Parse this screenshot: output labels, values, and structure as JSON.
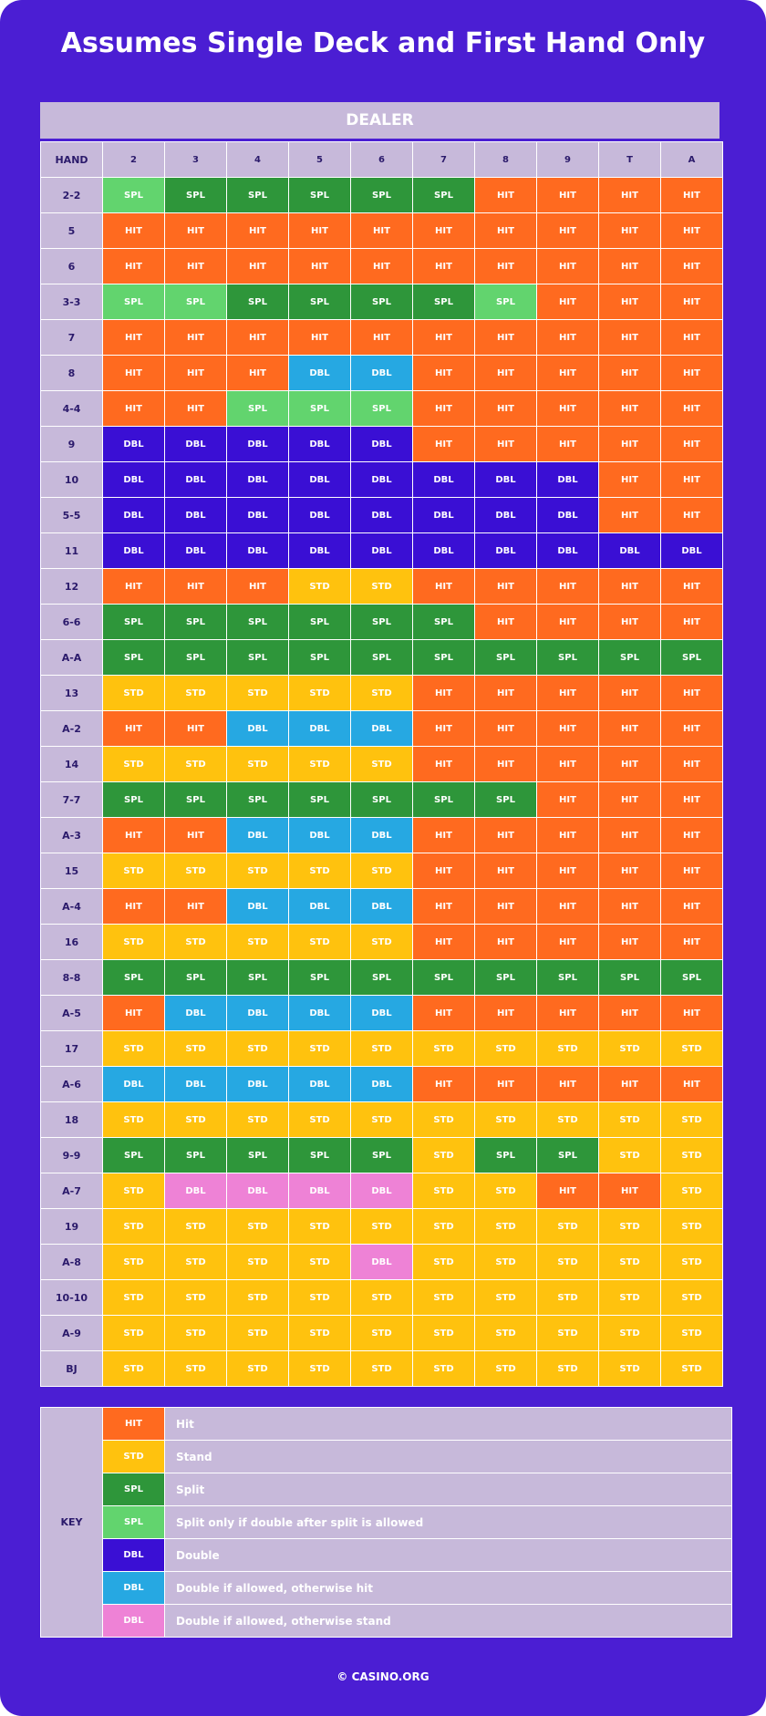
{
  "title": "Assumes Single Deck and First Hand Only",
  "dealer_label": "DEALER",
  "hand_label": "HAND",
  "dealer_cards": [
    "2",
    "3",
    "4",
    "5",
    "6",
    "7",
    "8",
    "9",
    "T",
    "A"
  ],
  "colors": {
    "HIT": "#ff6a1f",
    "STD": "#ffc20e",
    "SPL": "#2e963a",
    "SPL2": "#62d46e",
    "DBL": "#3a0fd4",
    "DBL2": "#26a8e2",
    "DBL3": "#ee82d6"
  },
  "codes": {
    "HIT": "HIT",
    "STD": "STD",
    "SPL": "SPL",
    "SPL2": "SPL",
    "DBL": "DBL",
    "DBL2": "DBL",
    "DBL3": "DBL"
  },
  "rows": [
    {
      "hand": "2-2",
      "cells": [
        "SPL2",
        "SPL",
        "SPL",
        "SPL",
        "SPL",
        "SPL",
        "HIT",
        "HIT",
        "HIT",
        "HIT"
      ]
    },
    {
      "hand": "5",
      "cells": [
        "HIT",
        "HIT",
        "HIT",
        "HIT",
        "HIT",
        "HIT",
        "HIT",
        "HIT",
        "HIT",
        "HIT"
      ]
    },
    {
      "hand": "6",
      "cells": [
        "HIT",
        "HIT",
        "HIT",
        "HIT",
        "HIT",
        "HIT",
        "HIT",
        "HIT",
        "HIT",
        "HIT"
      ]
    },
    {
      "hand": "3-3",
      "cells": [
        "SPL2",
        "SPL2",
        "SPL",
        "SPL",
        "SPL",
        "SPL",
        "SPL2",
        "HIT",
        "HIT",
        "HIT"
      ]
    },
    {
      "hand": "7",
      "cells": [
        "HIT",
        "HIT",
        "HIT",
        "HIT",
        "HIT",
        "HIT",
        "HIT",
        "HIT",
        "HIT",
        "HIT"
      ]
    },
    {
      "hand": "8",
      "cells": [
        "HIT",
        "HIT",
        "HIT",
        "DBL2",
        "DBL2",
        "HIT",
        "HIT",
        "HIT",
        "HIT",
        "HIT"
      ]
    },
    {
      "hand": "4-4",
      "cells": [
        "HIT",
        "HIT",
        "SPL2",
        "SPL2",
        "SPL2",
        "HIT",
        "HIT",
        "HIT",
        "HIT",
        "HIT"
      ]
    },
    {
      "hand": "9",
      "cells": [
        "DBL",
        "DBL",
        "DBL",
        "DBL",
        "DBL",
        "HIT",
        "HIT",
        "HIT",
        "HIT",
        "HIT"
      ]
    },
    {
      "hand": "10",
      "cells": [
        "DBL",
        "DBL",
        "DBL",
        "DBL",
        "DBL",
        "DBL",
        "DBL",
        "DBL",
        "HIT",
        "HIT"
      ]
    },
    {
      "hand": "5-5",
      "cells": [
        "DBL",
        "DBL",
        "DBL",
        "DBL",
        "DBL",
        "DBL",
        "DBL",
        "DBL",
        "HIT",
        "HIT"
      ]
    },
    {
      "hand": "11",
      "cells": [
        "DBL",
        "DBL",
        "DBL",
        "DBL",
        "DBL",
        "DBL",
        "DBL",
        "DBL",
        "DBL",
        "DBL"
      ]
    },
    {
      "hand": "12",
      "cells": [
        "HIT",
        "HIT",
        "HIT",
        "STD",
        "STD",
        "HIT",
        "HIT",
        "HIT",
        "HIT",
        "HIT"
      ]
    },
    {
      "hand": "6-6",
      "cells": [
        "SPL",
        "SPL",
        "SPL",
        "SPL",
        "SPL",
        "SPL",
        "HIT",
        "HIT",
        "HIT",
        "HIT"
      ]
    },
    {
      "hand": "A-A",
      "cells": [
        "SPL",
        "SPL",
        "SPL",
        "SPL",
        "SPL",
        "SPL",
        "SPL",
        "SPL",
        "SPL",
        "SPL"
      ]
    },
    {
      "hand": "13",
      "cells": [
        "STD",
        "STD",
        "STD",
        "STD",
        "STD",
        "HIT",
        "HIT",
        "HIT",
        "HIT",
        "HIT"
      ]
    },
    {
      "hand": "A-2",
      "cells": [
        "HIT",
        "HIT",
        "DBL2",
        "DBL2",
        "DBL2",
        "HIT",
        "HIT",
        "HIT",
        "HIT",
        "HIT"
      ]
    },
    {
      "hand": "14",
      "cells": [
        "STD",
        "STD",
        "STD",
        "STD",
        "STD",
        "HIT",
        "HIT",
        "HIT",
        "HIT",
        "HIT"
      ]
    },
    {
      "hand": "7-7",
      "cells": [
        "SPL",
        "SPL",
        "SPL",
        "SPL",
        "SPL",
        "SPL",
        "SPL",
        "HIT",
        "HIT",
        "HIT"
      ]
    },
    {
      "hand": "A-3",
      "cells": [
        "HIT",
        "HIT",
        "DBL2",
        "DBL2",
        "DBL2",
        "HIT",
        "HIT",
        "HIT",
        "HIT",
        "HIT"
      ]
    },
    {
      "hand": "15",
      "cells": [
        "STD",
        "STD",
        "STD",
        "STD",
        "STD",
        "HIT",
        "HIT",
        "HIT",
        "HIT",
        "HIT"
      ]
    },
    {
      "hand": "A-4",
      "cells": [
        "HIT",
        "HIT",
        "DBL2",
        "DBL2",
        "DBL2",
        "HIT",
        "HIT",
        "HIT",
        "HIT",
        "HIT"
      ]
    },
    {
      "hand": "16",
      "cells": [
        "STD",
        "STD",
        "STD",
        "STD",
        "STD",
        "HIT",
        "HIT",
        "HIT",
        "HIT",
        "HIT"
      ]
    },
    {
      "hand": "8-8",
      "cells": [
        "SPL",
        "SPL",
        "SPL",
        "SPL",
        "SPL",
        "SPL",
        "SPL",
        "SPL",
        "SPL",
        "SPL"
      ]
    },
    {
      "hand": "A-5",
      "cells": [
        "HIT",
        "DBL2",
        "DBL2",
        "DBL2",
        "DBL2",
        "HIT",
        "HIT",
        "HIT",
        "HIT",
        "HIT"
      ]
    },
    {
      "hand": "17",
      "cells": [
        "STD",
        "STD",
        "STD",
        "STD",
        "STD",
        "STD",
        "STD",
        "STD",
        "STD",
        "STD"
      ]
    },
    {
      "hand": "A-6",
      "cells": [
        "DBL2",
        "DBL2",
        "DBL2",
        "DBL2",
        "DBL2",
        "HIT",
        "HIT",
        "HIT",
        "HIT",
        "HIT"
      ]
    },
    {
      "hand": "18",
      "cells": [
        "STD",
        "STD",
        "STD",
        "STD",
        "STD",
        "STD",
        "STD",
        "STD",
        "STD",
        "STD"
      ]
    },
    {
      "hand": "9-9",
      "cells": [
        "SPL",
        "SPL",
        "SPL",
        "SPL",
        "SPL",
        "STD",
        "SPL",
        "SPL",
        "STD",
        "STD"
      ]
    },
    {
      "hand": "A-7",
      "cells": [
        "STD",
        "DBL3",
        "DBL3",
        "DBL3",
        "DBL3",
        "STD",
        "STD",
        "HIT",
        "HIT",
        "STD"
      ]
    },
    {
      "hand": "19",
      "cells": [
        "STD",
        "STD",
        "STD",
        "STD",
        "STD",
        "STD",
        "STD",
        "STD",
        "STD",
        "STD"
      ]
    },
    {
      "hand": "A-8",
      "cells": [
        "STD",
        "STD",
        "STD",
        "STD",
        "DBL3",
        "STD",
        "STD",
        "STD",
        "STD",
        "STD"
      ]
    },
    {
      "hand": "10-10",
      "cells": [
        "STD",
        "STD",
        "STD",
        "STD",
        "STD",
        "STD",
        "STD",
        "STD",
        "STD",
        "STD"
      ]
    },
    {
      "hand": "A-9",
      "cells": [
        "STD",
        "STD",
        "STD",
        "STD",
        "STD",
        "STD",
        "STD",
        "STD",
        "STD",
        "STD"
      ]
    },
    {
      "hand": "BJ",
      "cells": [
        "STD",
        "STD",
        "STD",
        "STD",
        "STD",
        "STD",
        "STD",
        "STD",
        "STD",
        "STD"
      ]
    }
  ],
  "key": {
    "label": "KEY",
    "items": [
      {
        "code": "HIT",
        "text": "HIT",
        "description": "Hit"
      },
      {
        "code": "STD",
        "text": "STD",
        "description": "Stand"
      },
      {
        "code": "SPL",
        "text": "SPL",
        "description": "Split"
      },
      {
        "code": "SPL2",
        "text": "SPL",
        "description": "Split only if double after split is allowed"
      },
      {
        "code": "DBL",
        "text": "DBL",
        "description": "Double"
      },
      {
        "code": "DBL2",
        "text": "DBL",
        "description": "Double if allowed, otherwise hit"
      },
      {
        "code": "DBL3",
        "text": "DBL",
        "description": "Double if allowed, otherwise stand"
      }
    ]
  },
  "footer": "© CASINO.ORG"
}
